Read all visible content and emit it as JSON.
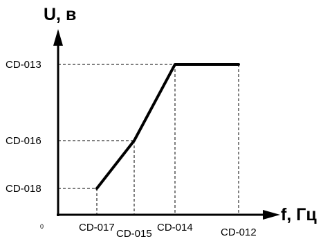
{
  "diagram": {
    "y_axis_title": "U, в",
    "x_axis_title": "f,  Гц",
    "origin_label": "0",
    "y_ticks": [
      {
        "label": "CD-013",
        "level": 3
      },
      {
        "label": "CD-016",
        "level": 2
      },
      {
        "label": "CD-018",
        "level": 1
      }
    ],
    "x_ticks": [
      {
        "label": "CD-017",
        "level": 1
      },
      {
        "label": "CD-015",
        "level": 2
      },
      {
        "label": "CD-014",
        "level": 3
      },
      {
        "label": "CD-012",
        "level": 4
      }
    ],
    "curve_points": [
      {
        "x": "CD-017",
        "y": "CD-018"
      },
      {
        "x": "CD-015",
        "y": "CD-016"
      },
      {
        "x": "CD-014",
        "y": "CD-013"
      },
      {
        "x": "CD-012",
        "y": "CD-013"
      }
    ]
  }
}
